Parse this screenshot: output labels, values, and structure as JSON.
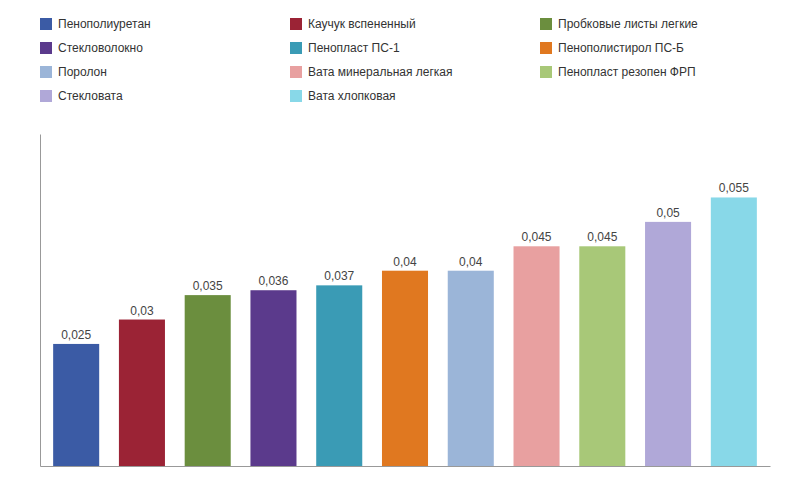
{
  "chart_data": {
    "type": "bar",
    "categories": [
      "Пенополиуретан",
      "Каучук вспененный",
      "Пробковые листы легкие",
      "Стекловолокно",
      "Пенопласт ПС-1",
      "Пенополистирол ПС-Б",
      "Поролон",
      "Вата минеральная легкая",
      "Пенопласт резопен ФРП",
      "Стекловата",
      "Вата хлопковая"
    ],
    "values": [
      0.025,
      0.03,
      0.035,
      0.036,
      0.037,
      0.04,
      0.04,
      0.045,
      0.045,
      0.05,
      0.055
    ],
    "value_labels": [
      "0,025",
      "0,03",
      "0,035",
      "0,036",
      "0,037",
      "0,04",
      "0,04",
      "0,045",
      "0,045",
      "0,05",
      "0,055"
    ],
    "colors": [
      "#3B5BA5",
      "#9B2335",
      "#6B8E3E",
      "#5B3A8C",
      "#3A9BB5",
      "#E07820",
      "#9BB5D8",
      "#E8A0A0",
      "#A8C878",
      "#B0A8D8",
      "#88D8E8"
    ],
    "ylim": [
      0,
      0.068
    ],
    "data_labels": true,
    "tick_labels": false,
    "grid": false,
    "legend": "top"
  }
}
